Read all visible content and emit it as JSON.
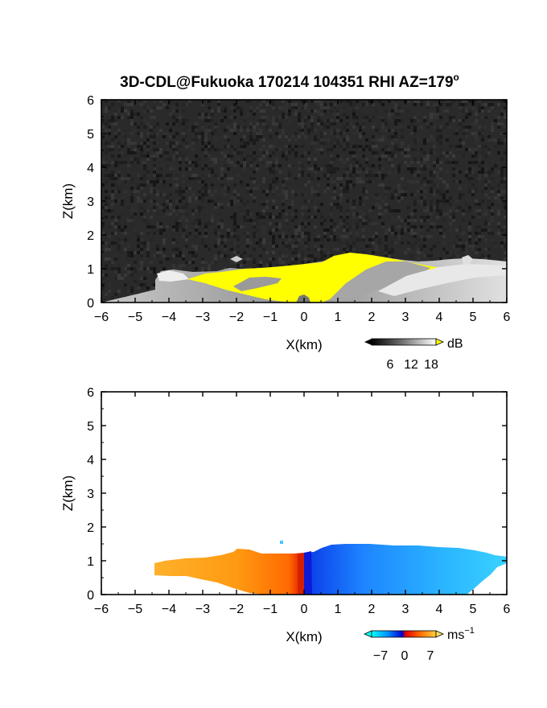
{
  "figure": {
    "title_main": "3D-CDL@Fukuoka 170214 104351 RHI AZ=179",
    "title_sup": "o"
  },
  "chart_data": [
    {
      "type": "heatmap",
      "title": "3D-CDL@Fukuoka 170214 104351 RHI AZ=179°",
      "xlabel": "X(km)",
      "ylabel": "Z(km)",
      "xlim": [
        -6,
        6
      ],
      "ylim": [
        0,
        6
      ],
      "xticks": [
        "-6",
        "-5",
        "-4",
        "-3",
        "-2",
        "-1",
        "0",
        "1",
        "2",
        "3",
        "4",
        "5",
        "6"
      ],
      "yticks": [
        "0",
        "1",
        "2",
        "3",
        "4",
        "5",
        "6"
      ],
      "quantity": "signal intensity",
      "colorbar": {
        "unit": "dB",
        "ticks": [
          "6",
          "12",
          "18"
        ],
        "over_color": "#ffff00"
      },
      "echo_top_profile_km": [
        [
          -4.4,
          0.85
        ],
        [
          -3.5,
          0.8
        ],
        [
          -2.0,
          1.0
        ],
        [
          -1.0,
          1.05
        ],
        [
          0.0,
          1.25
        ],
        [
          1.0,
          1.45
        ],
        [
          2.0,
          1.3
        ],
        [
          3.0,
          1.25
        ],
        [
          4.0,
          1.2
        ],
        [
          5.0,
          1.2
        ],
        [
          6.0,
          1.1
        ]
      ],
      "saturated_region": "yellow (>18 dB) from about x=-3.5 to x=3.6 km below about 1.4 km"
    },
    {
      "type": "heatmap",
      "title": "",
      "xlabel": "X(km)",
      "ylabel": "Z(km)",
      "xlim": [
        -6,
        6
      ],
      "ylim": [
        0,
        6
      ],
      "xticks": [
        "-6",
        "-5",
        "-4",
        "-3",
        "-2",
        "-1",
        "0",
        "1",
        "2",
        "3",
        "4",
        "5",
        "6"
      ],
      "yticks": [
        "0",
        "1",
        "2",
        "3",
        "4",
        "5",
        "6"
      ],
      "quantity": "radial velocity",
      "colorbar": {
        "unit": "ms",
        "unit_sup": "−1",
        "ticks": [
          "−7",
          "0",
          "7"
        ]
      },
      "velocity_profile_ms": [
        [
          -4.5,
          5.5
        ],
        [
          -3.0,
          6.0
        ],
        [
          -2.0,
          5.5
        ],
        [
          -1.0,
          4.0
        ],
        [
          -0.2,
          2.0
        ],
        [
          0.1,
          -6.5
        ],
        [
          1.0,
          -6.0
        ],
        [
          2.0,
          -5.0
        ],
        [
          3.0,
          -4.0
        ],
        [
          4.0,
          -3.0
        ],
        [
          5.0,
          -2.5
        ],
        [
          6.0,
          -2.0
        ]
      ]
    }
  ]
}
